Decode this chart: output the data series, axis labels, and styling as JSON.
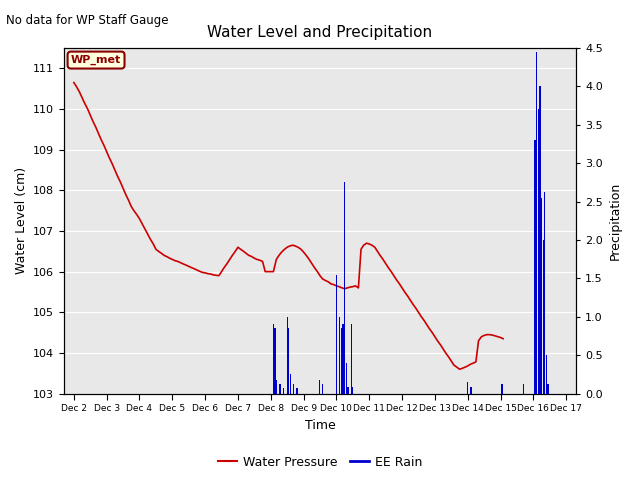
{
  "title": "Water Level and Precipitation",
  "subtitle": "No data for WP Staff Gauge",
  "xlabel": "Time",
  "ylabel_left": "Water Level (cm)",
  "ylabel_right": "Precipitation",
  "legend_label_wp": "WP_met",
  "legend_label_water": "Water Pressure",
  "legend_label_rain": "EE Rain",
  "ylim_left": [
    103.0,
    111.5
  ],
  "ylim_right": [
    0.0,
    4.5
  ],
  "yticks_left": [
    103.0,
    104.0,
    105.0,
    106.0,
    107.0,
    108.0,
    109.0,
    110.0,
    111.0
  ],
  "yticks_right": [
    0.0,
    0.5,
    1.0,
    1.5,
    2.0,
    2.5,
    3.0,
    3.5,
    4.0,
    4.5
  ],
  "water_color": "#cc0000",
  "rain_color": "#0000cc",
  "background_color": "#e8e8e8",
  "figsize": [
    6.4,
    4.8
  ],
  "dpi": 100,
  "xtick_labels": [
    "Dec 2",
    "Dec 3",
    "Dec 4",
    "Dec 5",
    "Dec 6",
    "Dec 7",
    "Dec 8",
    "Dec 9",
    "Dec 10",
    "Dec 11",
    "Dec 12",
    "Dec 13",
    "Dec 14",
    "Dec 15",
    "Dec 16",
    "Dec 17"
  ],
  "xlim": [
    -0.3,
    15.3
  ],
  "water_pressure": [
    [
      0.0,
      110.65
    ],
    [
      0.08,
      110.55
    ],
    [
      0.17,
      110.42
    ],
    [
      0.25,
      110.28
    ],
    [
      0.33,
      110.14
    ],
    [
      0.42,
      110.0
    ],
    [
      0.5,
      109.85
    ],
    [
      0.58,
      109.7
    ],
    [
      0.67,
      109.55
    ],
    [
      0.75,
      109.4
    ],
    [
      0.83,
      109.25
    ],
    [
      0.92,
      109.1
    ],
    [
      1.0,
      108.95
    ],
    [
      1.08,
      108.8
    ],
    [
      1.17,
      108.65
    ],
    [
      1.25,
      108.5
    ],
    [
      1.33,
      108.35
    ],
    [
      1.42,
      108.2
    ],
    [
      1.5,
      108.05
    ],
    [
      1.58,
      107.9
    ],
    [
      1.67,
      107.75
    ],
    [
      1.75,
      107.6
    ],
    [
      1.83,
      107.5
    ],
    [
      1.92,
      107.4
    ],
    [
      2.0,
      107.3
    ],
    [
      2.08,
      107.18
    ],
    [
      2.17,
      107.05
    ],
    [
      2.25,
      106.93
    ],
    [
      2.33,
      106.8
    ],
    [
      2.42,
      106.68
    ],
    [
      2.5,
      106.55
    ],
    [
      2.58,
      106.5
    ],
    [
      2.67,
      106.45
    ],
    [
      2.75,
      106.4
    ],
    [
      2.83,
      106.37
    ],
    [
      2.92,
      106.33
    ],
    [
      3.0,
      106.3
    ],
    [
      3.08,
      106.27
    ],
    [
      3.17,
      106.25
    ],
    [
      3.25,
      106.22
    ],
    [
      3.33,
      106.19
    ],
    [
      3.42,
      106.16
    ],
    [
      3.5,
      106.13
    ],
    [
      3.58,
      106.1
    ],
    [
      3.67,
      106.07
    ],
    [
      3.75,
      106.04
    ],
    [
      3.83,
      106.01
    ],
    [
      3.92,
      105.98
    ],
    [
      4.0,
      105.97
    ],
    [
      4.08,
      105.95
    ],
    [
      4.17,
      105.94
    ],
    [
      4.25,
      105.92
    ],
    [
      4.33,
      105.91
    ],
    [
      4.42,
      105.9
    ],
    [
      4.5,
      106.0
    ],
    [
      4.58,
      106.1
    ],
    [
      4.67,
      106.2
    ],
    [
      4.75,
      106.3
    ],
    [
      4.83,
      106.4
    ],
    [
      4.92,
      106.5
    ],
    [
      5.0,
      106.6
    ],
    [
      5.08,
      106.55
    ],
    [
      5.17,
      106.5
    ],
    [
      5.25,
      106.45
    ],
    [
      5.33,
      106.4
    ],
    [
      5.42,
      106.37
    ],
    [
      5.5,
      106.33
    ],
    [
      5.58,
      106.3
    ],
    [
      5.67,
      106.28
    ],
    [
      5.75,
      106.25
    ],
    [
      5.83,
      106.0
    ],
    [
      5.92,
      106.0
    ],
    [
      6.0,
      106.0
    ],
    [
      6.08,
      106.0
    ],
    [
      6.17,
      106.3
    ],
    [
      6.25,
      106.4
    ],
    [
      6.33,
      106.48
    ],
    [
      6.42,
      106.55
    ],
    [
      6.5,
      106.6
    ],
    [
      6.58,
      106.63
    ],
    [
      6.67,
      106.65
    ],
    [
      6.75,
      106.63
    ],
    [
      6.83,
      106.6
    ],
    [
      6.92,
      106.55
    ],
    [
      7.0,
      106.48
    ],
    [
      7.08,
      106.4
    ],
    [
      7.17,
      106.3
    ],
    [
      7.25,
      106.2
    ],
    [
      7.33,
      106.1
    ],
    [
      7.42,
      106.0
    ],
    [
      7.5,
      105.9
    ],
    [
      7.58,
      105.82
    ],
    [
      7.67,
      105.78
    ],
    [
      7.75,
      105.75
    ],
    [
      7.83,
      105.7
    ],
    [
      7.92,
      105.68
    ],
    [
      8.0,
      105.65
    ],
    [
      8.08,
      105.63
    ],
    [
      8.17,
      105.6
    ],
    [
      8.25,
      105.58
    ],
    [
      8.33,
      105.6
    ],
    [
      8.42,
      105.62
    ],
    [
      8.5,
      105.63
    ],
    [
      8.58,
      105.65
    ],
    [
      8.67,
      105.6
    ],
    [
      8.75,
      106.55
    ],
    [
      8.83,
      106.65
    ],
    [
      8.92,
      106.7
    ],
    [
      9.0,
      106.68
    ],
    [
      9.08,
      106.65
    ],
    [
      9.17,
      106.6
    ],
    [
      9.25,
      106.5
    ],
    [
      9.33,
      106.4
    ],
    [
      9.42,
      106.3
    ],
    [
      9.5,
      106.2
    ],
    [
      9.58,
      106.1
    ],
    [
      9.67,
      106.0
    ],
    [
      9.75,
      105.9
    ],
    [
      9.83,
      105.8
    ],
    [
      9.92,
      105.7
    ],
    [
      10.0,
      105.6
    ],
    [
      10.08,
      105.5
    ],
    [
      10.17,
      105.4
    ],
    [
      10.25,
      105.3
    ],
    [
      10.33,
      105.2
    ],
    [
      10.42,
      105.1
    ],
    [
      10.5,
      105.0
    ],
    [
      10.58,
      104.9
    ],
    [
      10.67,
      104.8
    ],
    [
      10.75,
      104.7
    ],
    [
      10.83,
      104.6
    ],
    [
      10.92,
      104.5
    ],
    [
      11.0,
      104.4
    ],
    [
      11.08,
      104.3
    ],
    [
      11.17,
      104.2
    ],
    [
      11.25,
      104.1
    ],
    [
      11.33,
      104.0
    ],
    [
      11.42,
      103.9
    ],
    [
      11.5,
      103.8
    ],
    [
      11.58,
      103.7
    ],
    [
      11.67,
      103.65
    ],
    [
      11.75,
      103.6
    ],
    [
      11.83,
      103.62
    ],
    [
      11.92,
      103.65
    ],
    [
      12.0,
      103.68
    ],
    [
      12.08,
      103.72
    ],
    [
      12.17,
      103.75
    ],
    [
      12.25,
      103.78
    ],
    [
      12.33,
      104.3
    ],
    [
      12.42,
      104.4
    ],
    [
      12.5,
      104.43
    ],
    [
      12.58,
      104.45
    ],
    [
      12.67,
      104.45
    ],
    [
      12.75,
      104.44
    ],
    [
      12.83,
      104.42
    ],
    [
      12.92,
      104.4
    ],
    [
      13.0,
      104.38
    ],
    [
      13.08,
      104.35
    ]
  ],
  "rain_events": [
    [
      6.08,
      0.9
    ],
    [
      6.13,
      0.85
    ],
    [
      6.18,
      0.18
    ],
    [
      6.28,
      0.12
    ],
    [
      6.38,
      0.07
    ],
    [
      6.5,
      1.0
    ],
    [
      6.55,
      0.85
    ],
    [
      6.6,
      0.25
    ],
    [
      6.7,
      0.12
    ],
    [
      6.8,
      0.07
    ],
    [
      7.48,
      0.18
    ],
    [
      7.58,
      0.12
    ],
    [
      8.0,
      1.55
    ],
    [
      8.1,
      1.0
    ],
    [
      8.15,
      0.85
    ],
    [
      8.2,
      0.9
    ],
    [
      8.25,
      2.75
    ],
    [
      8.3,
      0.4
    ],
    [
      8.35,
      0.08
    ],
    [
      8.45,
      0.9
    ],
    [
      8.5,
      0.08
    ],
    [
      12.0,
      0.15
    ],
    [
      12.1,
      0.08
    ],
    [
      13.05,
      0.12
    ],
    [
      13.7,
      0.12
    ],
    [
      14.05,
      3.3
    ],
    [
      14.1,
      4.45
    ],
    [
      14.15,
      3.7
    ],
    [
      14.2,
      4.0
    ],
    [
      14.25,
      2.55
    ],
    [
      14.3,
      2.0
    ],
    [
      14.35,
      2.62
    ],
    [
      14.4,
      0.5
    ],
    [
      14.45,
      0.12
    ]
  ]
}
